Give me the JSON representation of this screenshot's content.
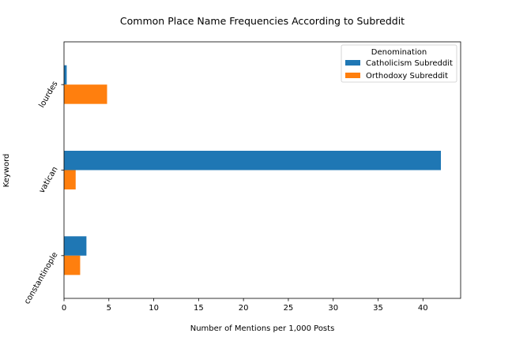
{
  "chart_data": {
    "type": "bar",
    "orientation": "horizontal",
    "title": "Common Place Name Frequencies According to Subreddit",
    "xlabel": "Number of Mentions per 1,000 Posts",
    "ylabel": "Keyword",
    "xlim": [
      0,
      44.2
    ],
    "xticks": [
      0,
      5,
      10,
      15,
      20,
      25,
      30,
      35,
      40
    ],
    "categories": [
      "lourdes",
      "vatican",
      "constantinople"
    ],
    "series": [
      {
        "name": "Catholicism Subreddit",
        "color": "#1f77b4",
        "values": [
          0.3,
          42.0,
          2.5
        ]
      },
      {
        "name": "Orthodoxy Subreddit",
        "color": "#ff7f0e",
        "values": [
          4.8,
          1.3,
          1.8
        ]
      }
    ],
    "legend": {
      "title": "Denomination",
      "placement": "top-right"
    },
    "grid": false
  }
}
